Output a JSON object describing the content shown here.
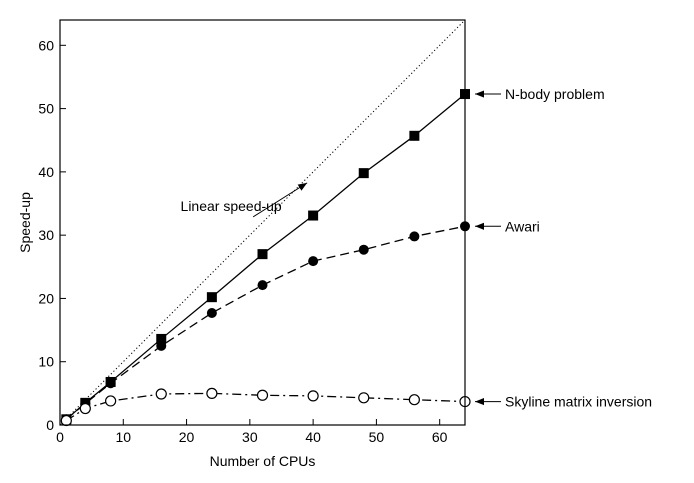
{
  "chart_data": {
    "type": "line",
    "title": "",
    "xlabel": "Number of CPUs",
    "ylabel": "Speed-up",
    "xlim": [
      0,
      64
    ],
    "ylim": [
      0,
      64
    ],
    "xticks": [
      0,
      10,
      20,
      30,
      40,
      50,
      60
    ],
    "yticks": [
      0,
      10,
      20,
      30,
      40,
      50,
      60
    ],
    "grid": false,
    "series": [
      {
        "name": "N-body problem",
        "line": "solid",
        "marker": "filled-square",
        "x": [
          1,
          4,
          8,
          16,
          24,
          32,
          40,
          48,
          56,
          64
        ],
        "y": [
          0.9,
          3.5,
          6.8,
          13.6,
          20.2,
          27.0,
          33.1,
          39.8,
          45.7,
          52.3
        ]
      },
      {
        "name": "Awari",
        "line": "dashed",
        "marker": "filled-circle",
        "x": [
          1,
          4,
          8,
          16,
          24,
          32,
          40,
          48,
          56,
          64
        ],
        "y": [
          0.9,
          3.4,
          6.6,
          12.5,
          17.7,
          22.1,
          25.9,
          27.7,
          29.8,
          31.4
        ]
      },
      {
        "name": "Skyline matrix inversion",
        "line": "dash-dot",
        "marker": "open-circle",
        "x": [
          1,
          4,
          8,
          16,
          24,
          32,
          40,
          48,
          56,
          64
        ],
        "y": [
          0.7,
          2.6,
          3.8,
          4.9,
          5.0,
          4.7,
          4.6,
          4.3,
          4.0,
          3.7
        ]
      }
    ],
    "reference_line": {
      "name": "Linear speed-up",
      "line": "dotted",
      "x": [
        0,
        64
      ],
      "y": [
        0,
        64
      ]
    },
    "annotations": [
      {
        "text": "Linear speed-up",
        "target": "reference_line",
        "x": 40,
        "y": 40
      },
      {
        "text": "N-body problem",
        "target": "N-body problem",
        "x": 64,
        "y": 52.3
      },
      {
        "text": "Awari",
        "target": "Awari",
        "x": 64,
        "y": 31.4
      },
      {
        "text": "Skyline matrix inversion",
        "target": "Skyline matrix inversion",
        "x": 64,
        "y": 3.7
      }
    ]
  }
}
